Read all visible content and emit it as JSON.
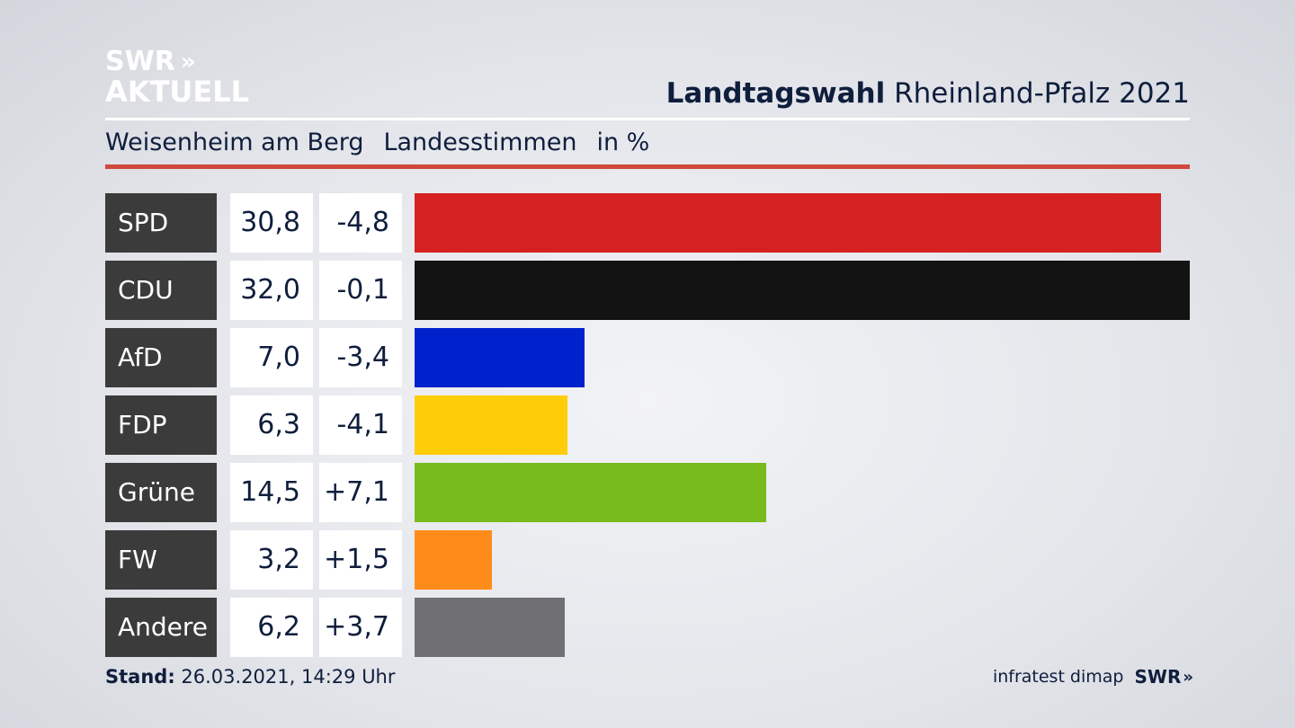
{
  "logo": {
    "line1": "SWR",
    "chevrons": "»",
    "line2": "AKTUELL"
  },
  "header": {
    "title_bold": "Landtagswahl",
    "title_rest": "Rheinland-Pfalz 2021"
  },
  "subtitle": {
    "place": "Weisenheim am Berg",
    "vote_type": "Landesstimmen",
    "unit": "in %"
  },
  "chart_data": {
    "type": "bar",
    "orientation": "horizontal",
    "xlim": [
      0,
      32.0
    ],
    "categories": [
      "SPD",
      "CDU",
      "AfD",
      "FDP",
      "Grüne",
      "FW",
      "Andere"
    ],
    "values": [
      30.8,
      32.0,
      7.0,
      6.3,
      14.5,
      3.2,
      6.2
    ],
    "value_labels": [
      "30,8",
      "32,0",
      "7,0",
      "6,3",
      "14,5",
      "3,2",
      "6,2"
    ],
    "diff_labels": [
      "-4,8",
      "-0,1",
      "-3,4",
      "-4,1",
      "+7,1",
      "+1,5",
      "+3,7"
    ],
    "colors": [
      "#d52121",
      "#131313",
      "#0022cc",
      "#ffcc08",
      "#78bb1c",
      "#ff8c1a",
      "#707072"
    ]
  },
  "footer": {
    "stand_label": "Stand:",
    "stand_value": "26.03.2021, 14:29 Uhr",
    "source": "infratest dimap",
    "brand": "SWR",
    "brand_chevrons": "»"
  }
}
